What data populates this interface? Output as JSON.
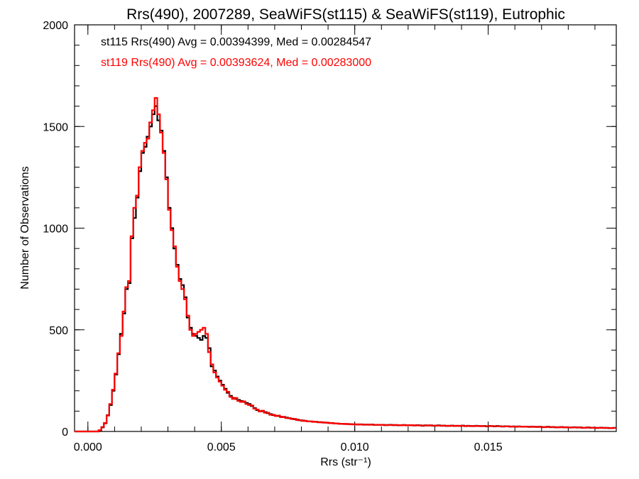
{
  "chart_data": {
    "type": "histogram",
    "title": "Rrs(490), 2007289, SeaWiFS(st115) & SeaWiFS(st119), Eutrophic",
    "xlabel": "Rrs (str⁻¹)",
    "ylabel": "Number of Observations",
    "xlim": [
      -0.0005,
      0.0198
    ],
    "ylim": [
      0,
      2000
    ],
    "xticks": [
      0.0,
      0.005,
      0.01,
      0.015
    ],
    "xtick_labels": [
      "0.000",
      "0.005",
      "0.010",
      "0.015"
    ],
    "xminor_step": 0.001,
    "yticks": [
      0,
      500,
      1000,
      1500,
      2000
    ],
    "ytick_labels": [
      "0",
      "500",
      "1000",
      "1500",
      "2000"
    ],
    "yminor_step": 100,
    "grid": false,
    "bin_start": 0.0,
    "bin_width": 0.0001,
    "legend": [
      {
        "text": "st115 Rrs(490) Avg = 0.00394399, Med = 0.00284547",
        "color": "#000000"
      },
      {
        "text": "st119 Rrs(490) Avg = 0.00393624, Med = 0.00283000",
        "color": "#ff0000"
      }
    ],
    "series": [
      {
        "name": "st115",
        "color": "#000000",
        "values": [
          0,
          0,
          0,
          0,
          5,
          20,
          40,
          80,
          130,
          200,
          280,
          380,
          480,
          580,
          700,
          730,
          950,
          1050,
          1150,
          1280,
          1370,
          1400,
          1450,
          1500,
          1560,
          1600,
          1530,
          1480,
          1380,
          1250,
          1100,
          1000,
          900,
          820,
          750,
          720,
          660,
          560,
          510,
          480,
          470,
          460,
          450,
          470,
          460,
          410,
          320,
          300,
          270,
          250,
          230,
          210,
          190,
          175,
          165,
          160,
          155,
          150,
          145,
          140,
          135,
          125,
          115,
          105,
          100,
          100,
          95,
          90,
          85,
          80,
          78,
          76,
          72,
          70,
          68,
          65,
          63,
          60,
          58,
          55,
          54,
          52,
          50,
          49,
          48,
          47,
          46,
          45,
          44,
          43,
          42,
          41,
          40,
          39,
          38,
          37,
          37,
          36,
          36,
          35,
          35,
          34,
          35,
          33,
          34,
          33,
          34,
          32,
          33,
          32,
          33,
          31,
          32,
          33,
          31,
          32,
          30,
          31,
          32,
          30,
          31,
          30,
          29,
          31,
          30,
          28,
          30,
          29,
          30,
          28,
          29,
          30,
          28,
          29,
          27,
          28,
          29,
          27,
          28,
          27,
          29,
          26,
          28,
          27,
          26,
          28,
          27,
          26,
          27,
          25,
          27,
          26,
          25,
          27,
          26,
          24,
          26,
          25,
          24,
          25,
          23,
          25,
          24,
          23,
          24,
          22,
          24,
          23,
          22,
          23,
          21,
          22,
          23,
          21,
          22,
          20,
          21,
          22,
          20,
          21,
          19,
          20,
          21,
          19,
          20,
          18,
          19,
          20,
          18,
          19,
          17,
          18,
          19,
          17,
          18,
          16,
          17,
          18
        ]
      },
      {
        "name": "st119",
        "color": "#ff0000",
        "values": [
          0,
          0,
          0,
          0,
          6,
          22,
          42,
          78,
          135,
          205,
          285,
          385,
          470,
          590,
          710,
          740,
          960,
          1100,
          1160,
          1300,
          1380,
          1420,
          1440,
          1520,
          1580,
          1640,
          1560,
          1470,
          1370,
          1240,
          1090,
          990,
          910,
          810,
          740,
          700,
          650,
          570,
          500,
          470,
          480,
          490,
          500,
          510,
          480,
          390,
          330,
          290,
          265,
          245,
          225,
          205,
          195,
          170,
          160,
          165,
          150,
          145,
          148,
          135,
          130,
          128,
          112,
          108,
          98,
          102,
          92,
          92,
          82,
          82,
          76,
          78,
          70,
          72,
          66,
          66,
          61,
          62,
          56,
          56,
          52,
          53,
          49,
          50,
          47,
          48,
          45,
          46,
          43,
          44,
          41,
          42,
          39,
          40,
          37,
          38,
          36,
          37,
          35,
          36,
          34,
          35,
          34,
          34,
          33,
          34,
          33,
          33,
          32,
          33,
          32,
          32,
          31,
          32,
          32,
          31,
          31,
          30,
          31,
          31,
          30,
          31,
          30,
          30,
          29,
          29,
          29,
          30,
          29,
          29,
          28,
          29,
          29,
          28,
          28,
          27,
          28,
          28,
          27,
          28,
          28,
          27,
          27,
          26,
          27,
          27,
          26,
          27,
          26,
          26,
          26,
          27,
          26,
          26,
          25,
          25,
          25,
          26,
          23,
          24,
          24,
          24,
          23,
          24,
          23,
          23,
          23,
          22,
          23,
          22,
          22,
          21,
          22,
          22,
          21,
          21,
          20,
          21,
          21,
          20,
          20,
          19,
          20,
          20,
          19,
          19,
          18,
          19,
          19,
          18,
          18,
          17,
          18,
          18,
          17,
          17,
          16,
          17
        ]
      }
    ]
  }
}
